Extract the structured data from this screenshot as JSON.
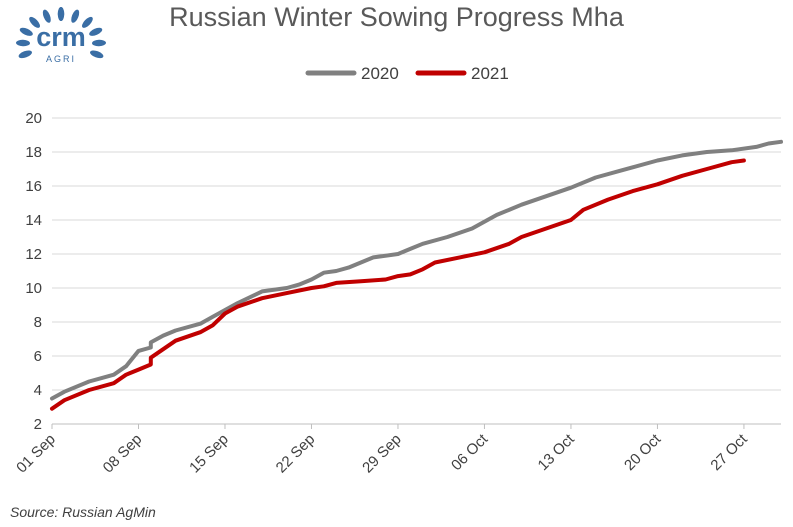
{
  "logo": {
    "text": "crm",
    "subtext": "AGRI",
    "icon": "laurel-wreath-icon"
  },
  "source": "Source: Russian AgMin",
  "chart_data": {
    "type": "line",
    "title": "Russian Winter Sowing Progress Mha",
    "xlabel": "",
    "ylabel": "",
    "ylim": [
      2,
      20
    ],
    "yticks": [
      2,
      4,
      6,
      8,
      10,
      12,
      14,
      16,
      18,
      20
    ],
    "xlim": [
      "01 Sep",
      "30 Oct"
    ],
    "x_tick_labels": [
      "01 Sep",
      "08 Sep",
      "15 Sep",
      "22 Sep",
      "29 Sep",
      "06 Oct",
      "13 Oct",
      "20 Oct",
      "27 Oct"
    ],
    "grid": {
      "horizontal": true,
      "vertical": false
    },
    "legend": "top-center",
    "series": [
      {
        "name": "2020",
        "color": "#808080",
        "x": [
          "01 Sep",
          "02 Sep",
          "04 Sep",
          "06 Sep",
          "07 Sep",
          "08 Sep",
          "09 Sep",
          "09 Sep",
          "10 Sep",
          "11 Sep",
          "13 Sep",
          "14 Sep",
          "16 Sep",
          "18 Sep",
          "20 Sep",
          "21 Sep",
          "22 Sep",
          "23 Sep",
          "24 Sep",
          "25 Sep",
          "27 Sep",
          "29 Sep",
          "30 Sep",
          "01 Oct",
          "03 Oct",
          "05 Oct",
          "07 Oct",
          "09 Oct",
          "11 Oct",
          "13 Oct",
          "15 Oct",
          "17 Oct",
          "18 Oct",
          "20 Oct",
          "22 Oct",
          "24 Oct",
          "26 Oct",
          "28 Oct",
          "29 Oct",
          "30 Oct"
        ],
        "values": [
          3.5,
          3.9,
          4.5,
          4.9,
          5.4,
          6.3,
          6.5,
          6.8,
          7.2,
          7.5,
          7.9,
          8.3,
          9.1,
          9.8,
          10.0,
          10.2,
          10.5,
          10.9,
          11.0,
          11.2,
          11.8,
          12.0,
          12.3,
          12.6,
          13.0,
          13.5,
          14.3,
          14.9,
          15.4,
          15.9,
          16.5,
          16.9,
          17.1,
          17.5,
          17.8,
          18.0,
          18.1,
          18.3,
          18.5,
          18.6
        ]
      },
      {
        "name": "2021",
        "color": "#c00000",
        "x": [
          "01 Sep",
          "02 Sep",
          "04 Sep",
          "06 Sep",
          "07 Sep",
          "08 Sep",
          "09 Sep",
          "09 Sep",
          "10 Sep",
          "11 Sep",
          "13 Sep",
          "14 Sep",
          "15 Sep",
          "16 Sep",
          "18 Sep",
          "20 Sep",
          "22 Sep",
          "23 Sep",
          "24 Sep",
          "26 Sep",
          "28 Sep",
          "29 Sep",
          "30 Sep",
          "01 Oct",
          "02 Oct",
          "04 Oct",
          "06 Oct",
          "08 Oct",
          "09 Oct",
          "11 Oct",
          "13 Oct",
          "14 Oct",
          "16 Oct",
          "18 Oct",
          "20 Oct",
          "22 Oct",
          "24 Oct",
          "26 Oct",
          "27 Oct"
        ],
        "values": [
          2.9,
          3.4,
          4.0,
          4.4,
          4.9,
          5.2,
          5.5,
          5.9,
          6.4,
          6.9,
          7.4,
          7.8,
          8.5,
          8.9,
          9.4,
          9.7,
          10.0,
          10.1,
          10.3,
          10.4,
          10.5,
          10.7,
          10.8,
          11.1,
          11.5,
          11.8,
          12.1,
          12.6,
          13.0,
          13.5,
          14.0,
          14.6,
          15.2,
          15.7,
          16.1,
          16.6,
          17.0,
          17.4,
          17.5
        ]
      }
    ]
  }
}
